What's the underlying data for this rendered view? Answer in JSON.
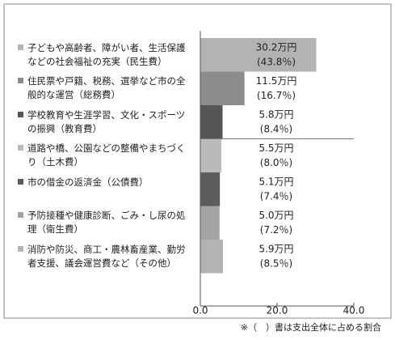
{
  "chart_data": {
    "type": "bar",
    "orientation": "horizontal",
    "categories": [
      "子どもや高齢者、障がい者、生活保護などの社会福祉の充実（民生費）",
      "住民票や戸籍、税務、選挙など市の全般的な運営（総務費）",
      "学校教育や生涯学習、文化・スポーツの振興（教育費）",
      "道路や橋、公園などの整備やまちづくり（土木費）",
      "市の借金の返済金（公債費）",
      "予防接種や健康診断、ごみ・し尿の処理（衛生費）",
      "消防や防災、商工・農林畜産業、勤労者支援、議会運営費など（その他）"
    ],
    "values": [
      30.2,
      11.5,
      5.8,
      5.5,
      5.1,
      5.0,
      5.9
    ],
    "value_labels": [
      "30.2万円",
      "11.5万円",
      "5.8万円",
      "5.5万円",
      "5.1万円",
      "5.0万円",
      "5.9万円"
    ],
    "share_labels": [
      "(43.8％)",
      "(16.7％)",
      "(8.4％)",
      "(8.0％)",
      "(7.4％)",
      "(7.2％)",
      "(8.5％)"
    ],
    "colors": [
      "#b3b3b3",
      "#8c8c8c",
      "#555555",
      "#bababa",
      "#5c5c5c",
      "#a3a3a3",
      "#b3b3b3"
    ],
    "xlim": [
      0,
      40
    ],
    "xticks": [
      {
        "value": 0,
        "label": "0.0"
      },
      {
        "value": 20,
        "label": "20.0"
      },
      {
        "value": 40,
        "label": "40.0"
      }
    ],
    "note": "※（　）書は支出全体に占める割合"
  }
}
